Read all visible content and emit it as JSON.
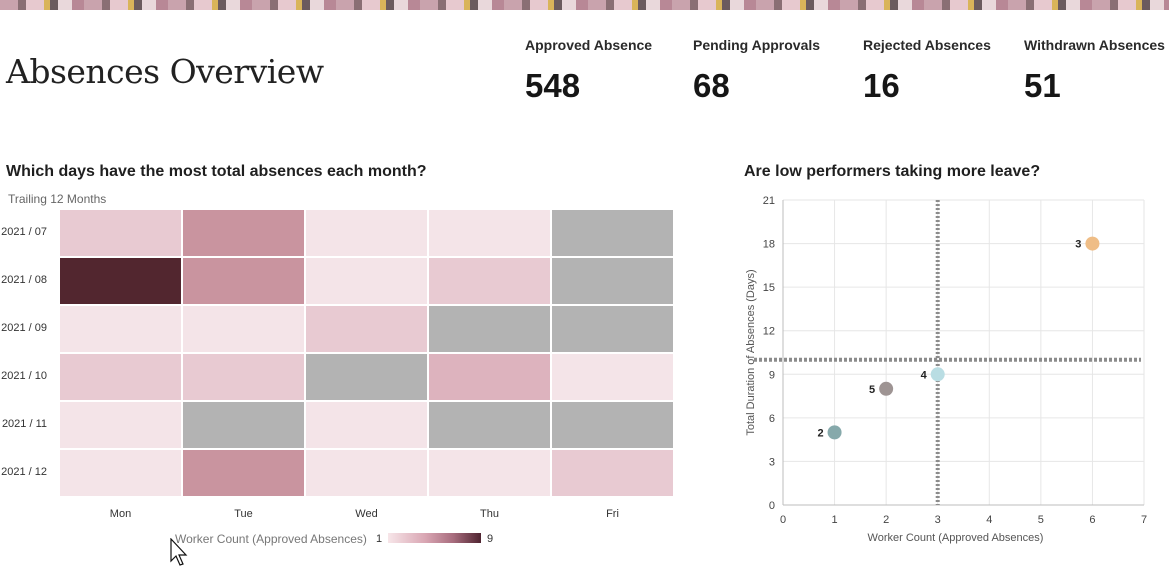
{
  "page": {
    "title": "Absences Overview"
  },
  "kpis": [
    {
      "label": "Approved Absence",
      "value": "548"
    },
    {
      "label": "Pending Approvals",
      "value": "68"
    },
    {
      "label": "Rejected Absences",
      "value": "16"
    },
    {
      "label": "Withdrawn Absences",
      "value": "51"
    }
  ],
  "heatmap": {
    "title": "Which days have the most total absences each month?",
    "subtitle": "Trailing 12 Months",
    "legend_label": "Worker Count (Approved Absences)",
    "legend_min": "1",
    "legend_max": "9",
    "null_color": "#b3b3b3",
    "colors": [
      "#f4e4e8",
      "#e8cad2",
      "#ddb3be",
      "#c9949f",
      "#52262f"
    ]
  },
  "scatter": {
    "title": "Are low performers taking more leave?",
    "point_colors": {
      "2": "#86a9ab",
      "3": "#efbd86",
      "4": "#b9dde3",
      "5": "#9e9493"
    },
    "reference_color": "#8c8c8c"
  },
  "chart_data": [
    {
      "type": "heatmap",
      "title": "Which days have the most total absences each month?",
      "subtitle": "Trailing 12 Months",
      "x_categories": [
        "Mon",
        "Tue",
        "Wed",
        "Thu",
        "Fri"
      ],
      "y_categories": [
        "2021 / 07",
        "2021 / 08",
        "2021 / 09",
        "2021 / 10",
        "2021 / 11",
        "2021 / 12"
      ],
      "values": [
        [
          2,
          4,
          1,
          1,
          null
        ],
        [
          9,
          4,
          1,
          2,
          null
        ],
        [
          1,
          1,
          2,
          null,
          null
        ],
        [
          2,
          2,
          null,
          3,
          1
        ],
        [
          1,
          null,
          1,
          null,
          null
        ],
        [
          1,
          4,
          1,
          1,
          2
        ]
      ],
      "color_scale": {
        "min": 1,
        "max": 9,
        "label": "Worker Count (Approved Absences)"
      }
    },
    {
      "type": "scatter",
      "title": "Are low performers taking more leave?",
      "xlabel": "Worker Count (Approved Absences)",
      "ylabel": "Total Duration of Absences (Days)",
      "xlim": [
        0,
        7
      ],
      "ylim": [
        0,
        21
      ],
      "xticks": [
        0,
        1,
        2,
        3,
        4,
        5,
        6,
        7
      ],
      "yticks": [
        0,
        3,
        6,
        9,
        12,
        15,
        18,
        21
      ],
      "points": [
        {
          "label": "2",
          "x": 1,
          "y": 5
        },
        {
          "label": "3",
          "x": 6,
          "y": 18
        },
        {
          "label": "4",
          "x": 3,
          "y": 9
        },
        {
          "label": "5",
          "x": 2,
          "y": 8
        }
      ],
      "reference_lines": {
        "x": 3,
        "y": 10
      }
    }
  ]
}
